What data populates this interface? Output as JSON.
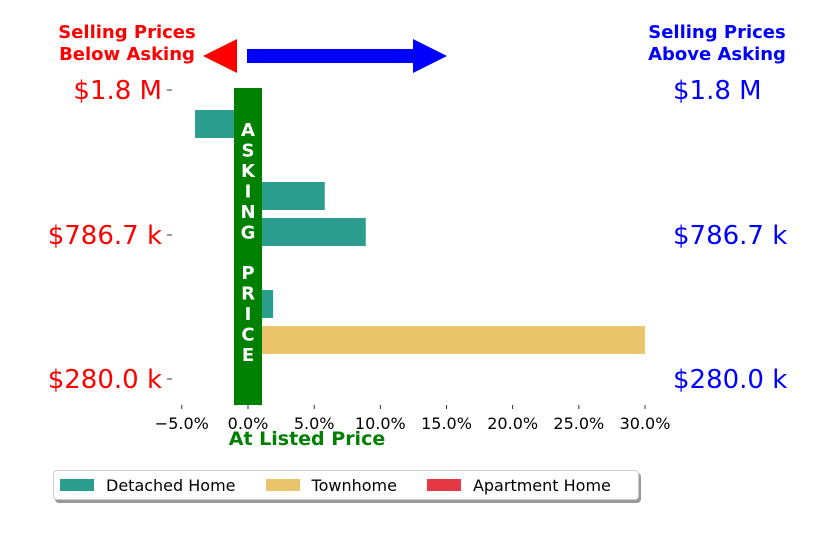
{
  "header": {
    "below_asking": [
      "Selling Prices",
      "Below Asking"
    ],
    "above_asking": [
      "Selling Prices",
      "Above Asking"
    ]
  },
  "chart_data": {
    "type": "bar",
    "orientation": "horizontal",
    "xlabel": "At Listed Price",
    "xlim": [
      -5.0,
      30.0
    ],
    "x_ticks": [
      "−5.0%",
      "0.0%",
      "5.0%",
      "10.0%",
      "15.0%",
      "20.0%",
      "25.0%",
      "30.0%"
    ],
    "x_tick_values": [
      -5,
      0,
      5,
      10,
      15,
      20,
      25,
      30
    ],
    "y_tick_labels": [
      "$1.8 M",
      "$786.7 k",
      "$280.0 k"
    ],
    "center_band_text": "ASKING PRICE",
    "series": [
      {
        "name": "Detached Home",
        "color": "#2a9d8f"
      },
      {
        "name": "Townhome",
        "color": "#e9c46a"
      },
      {
        "name": "Apartment Home",
        "color": "#e63946"
      }
    ],
    "bars": [
      {
        "series": "Detached Home",
        "value": -4.0,
        "row": 0
      },
      {
        "series": "Detached Home",
        "value": 0.5,
        "row": 1
      },
      {
        "series": "Detached Home",
        "value": 5.8,
        "row": 2
      },
      {
        "series": "Detached Home",
        "value": 8.9,
        "row": 3
      },
      {
        "series": "Detached Home",
        "value": 0.3,
        "row": 4
      },
      {
        "series": "Detached Home",
        "value": 1.9,
        "row": 5
      },
      {
        "series": "Townhome",
        "value": 30.0,
        "row": 6
      },
      {
        "series": "Apartment Home",
        "value": 0.5,
        "row": 7
      }
    ]
  }
}
